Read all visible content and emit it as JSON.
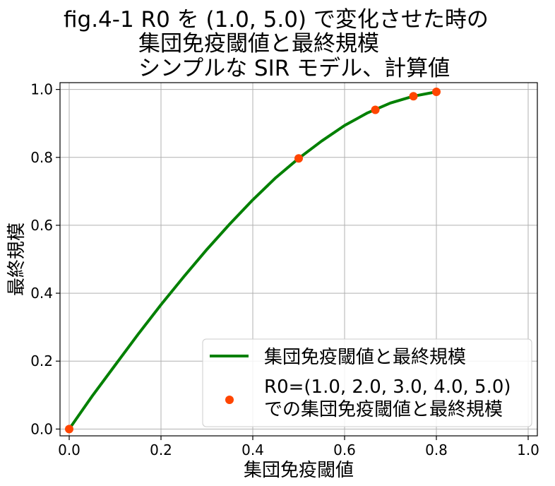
{
  "chart_data": {
    "type": "line",
    "title_lines": [
      "fig.4-1 R0 を (1.0, 5.0) で変化させた時の",
      "集団免疫閾値と最終規模",
      "シンプルな SIR モデル、計算値"
    ],
    "xlabel": "集団免疫閾値",
    "ylabel": "最終規模",
    "xlim": [
      -0.02,
      1.02
    ],
    "ylim": [
      -0.02,
      1.02
    ],
    "xticks": [
      "0.0",
      "0.2",
      "0.4",
      "0.6",
      "0.8",
      "1.0"
    ],
    "yticks": [
      "0.0",
      "0.2",
      "0.4",
      "0.6",
      "0.8",
      "1.0"
    ],
    "grid": true,
    "legend_position": "lower-right",
    "series": [
      {
        "name": "集団免疫閾値と最終規模",
        "kind": "line",
        "color": "#008000",
        "x": [
          0.0,
          0.05,
          0.1,
          0.15,
          0.2,
          0.25,
          0.3,
          0.35,
          0.4,
          0.45,
          0.5,
          0.55,
          0.6,
          0.65,
          0.7,
          0.75,
          0.8
        ],
        "y": [
          0.0,
          0.097,
          0.188,
          0.279,
          0.366,
          0.449,
          0.529,
          0.604,
          0.675,
          0.74,
          0.797,
          0.848,
          0.894,
          0.931,
          0.96,
          0.98,
          0.993
        ]
      },
      {
        "name_lines": [
          "R0=(1.0, 2.0, 3.0, 4.0, 5.0)",
          "での集団免疫閾値と最終規模"
        ],
        "kind": "scatter",
        "color": "#ff4500",
        "x": [
          0.0,
          0.5,
          0.667,
          0.75,
          0.8
        ],
        "y": [
          0.0,
          0.797,
          0.94,
          0.98,
          0.993
        ]
      }
    ]
  }
}
